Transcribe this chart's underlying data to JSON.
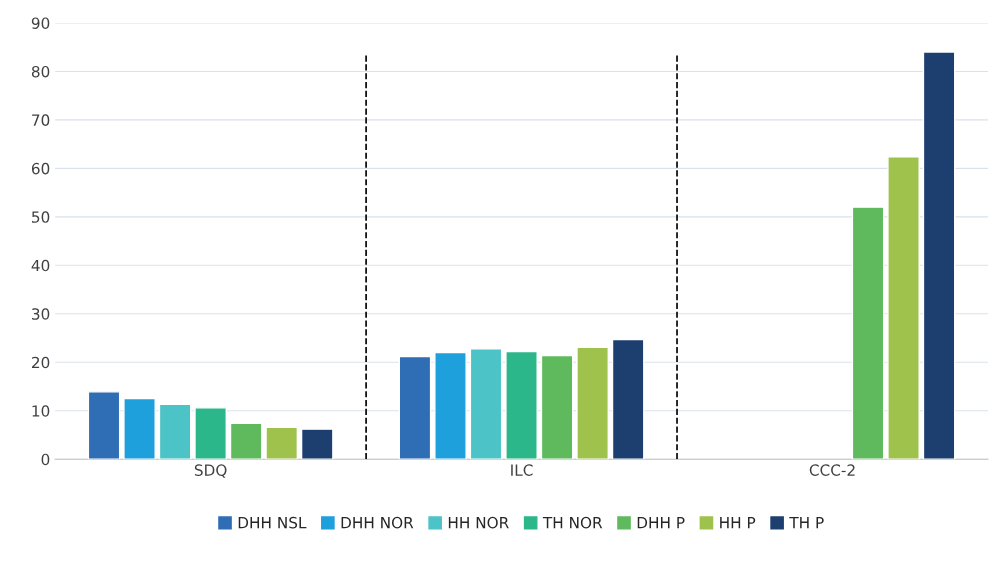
{
  "chart_data": {
    "type": "bar",
    "categories": [
      "SDQ",
      "ILC",
      "CCC-2"
    ],
    "series": [
      {
        "name": "DHH NSL",
        "color": "#2f6db5",
        "values": [
          13.9,
          21.2,
          null
        ]
      },
      {
        "name": "DHH NOR",
        "color": "#1ea0dc",
        "values": [
          12.5,
          22.0,
          null
        ]
      },
      {
        "name": "HH NOR",
        "color": "#4cc3c6",
        "values": [
          11.3,
          22.8,
          null
        ]
      },
      {
        "name": "TH NOR",
        "color": "#2cb78b",
        "values": [
          10.6,
          22.2,
          null
        ]
      },
      {
        "name": "DHH P",
        "color": "#5fba5d",
        "values": [
          7.4,
          21.4,
          52.0
        ]
      },
      {
        "name": "HH P",
        "color": "#9ec24c",
        "values": [
          6.6,
          23.1,
          62.4
        ]
      },
      {
        "name": "TH P",
        "color": "#1d3f70",
        "values": [
          6.2,
          24.7,
          84.0
        ]
      }
    ],
    "ylim": [
      0,
      90
    ],
    "yticks": [
      0,
      10,
      20,
      30,
      40,
      50,
      60,
      70,
      80,
      90
    ],
    "grid": "y",
    "legend": "bottom"
  }
}
